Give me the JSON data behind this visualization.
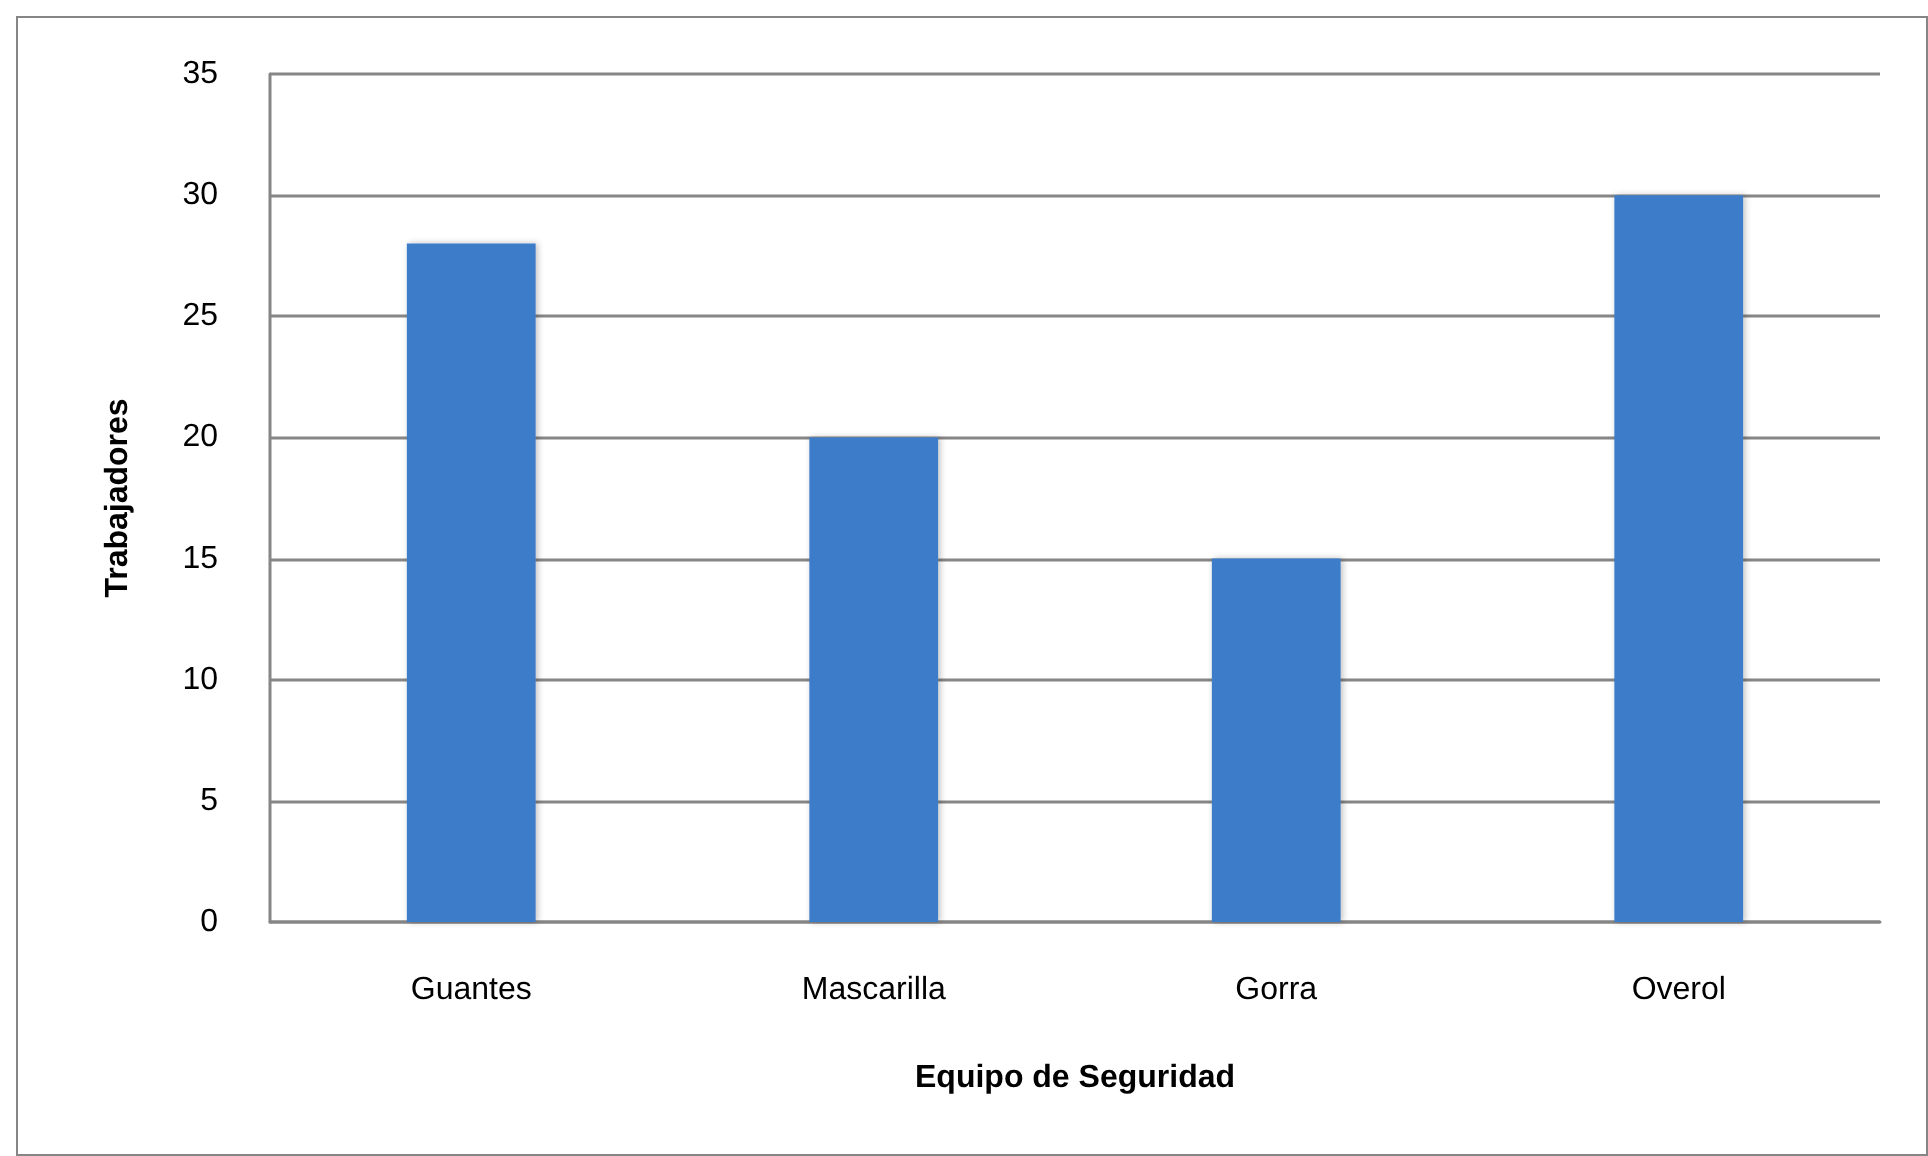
{
  "chart_data": {
    "type": "bar",
    "xlabel": "Equipo de Seguridad",
    "ylabel": "Trabajadores",
    "categories": [
      "Guantes",
      "Mascarilla",
      "Gorra",
      "Overol"
    ],
    "values": [
      28,
      20,
      15,
      30
    ],
    "color": "#3d7cc9",
    "ylim": [
      0,
      35
    ],
    "yticks": [
      0,
      5,
      10,
      15,
      20,
      25,
      30,
      35
    ],
    "grid": "y"
  }
}
